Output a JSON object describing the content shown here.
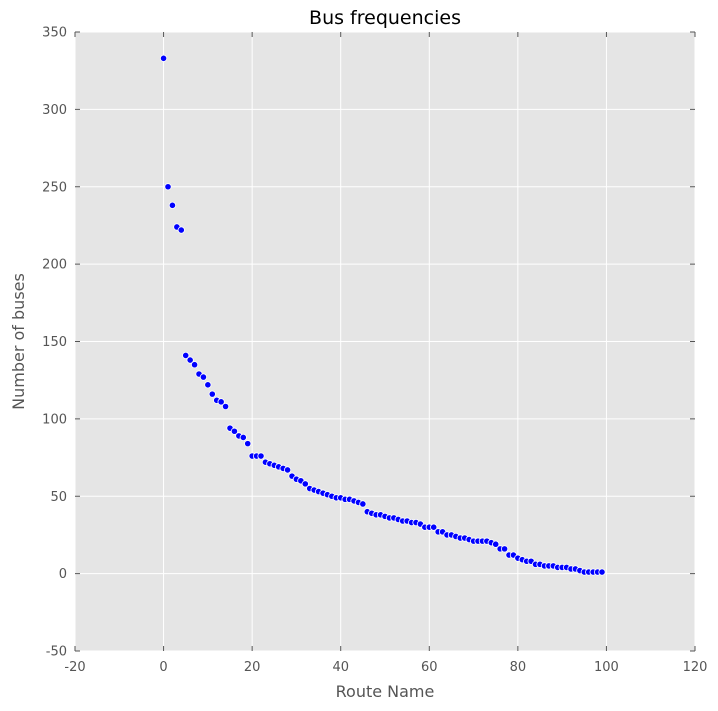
{
  "chart_data": {
    "type": "scatter",
    "title": "Bus frequencies",
    "xlabel": "Route Name",
    "ylabel": "Number of buses",
    "xlim": [
      -20,
      120
    ],
    "ylim": [
      -50,
      350
    ],
    "x_ticks": [
      -20,
      0,
      20,
      40,
      60,
      80,
      100,
      120
    ],
    "y_ticks": [
      -50,
      0,
      50,
      100,
      150,
      200,
      250,
      300,
      350
    ],
    "grid": true,
    "legend": "none",
    "colors": {
      "background": "#e5e5e5",
      "grid": "#ffffff",
      "marker": "#0000ff",
      "marker_edge": "#ffffff"
    },
    "series": [
      {
        "x": [
          0,
          1,
          2,
          3,
          4,
          5,
          6,
          7,
          8,
          9,
          10,
          11,
          12,
          13,
          14,
          15,
          16,
          17,
          18,
          19,
          20,
          21,
          22,
          23,
          24,
          25,
          26,
          27,
          28,
          29,
          30,
          31,
          32,
          33,
          34,
          35,
          36,
          37,
          38,
          39,
          40,
          41,
          42,
          43,
          44,
          45,
          46,
          47,
          48,
          49,
          50,
          51,
          52,
          53,
          54,
          55,
          56,
          57,
          58,
          59,
          60,
          61,
          62,
          63,
          64,
          65,
          66,
          67,
          68,
          69,
          70,
          71,
          72,
          73,
          74,
          75,
          76,
          77,
          78,
          79,
          80,
          81,
          82,
          83,
          84,
          85,
          86,
          87,
          88,
          89,
          90,
          91,
          92,
          93,
          94,
          95,
          96,
          97,
          98,
          99
        ],
        "y": [
          333,
          250,
          238,
          224,
          222,
          141,
          138,
          135,
          129,
          127,
          122,
          116,
          112,
          111,
          108,
          94,
          92,
          89,
          88,
          84,
          76,
          76,
          76,
          72,
          71,
          70,
          69,
          68,
          67,
          63,
          61,
          60,
          58,
          55,
          54,
          53,
          52,
          51,
          50,
          49,
          49,
          48,
          48,
          47,
          46,
          45,
          40,
          39,
          38,
          38,
          37,
          36,
          36,
          35,
          34,
          34,
          33,
          33,
          32,
          30,
          30,
          30,
          27,
          27,
          25,
          25,
          24,
          23,
          23,
          22,
          21,
          21,
          21,
          21,
          20,
          19,
          16,
          16,
          12,
          12,
          10,
          9,
          8,
          8,
          6,
          6,
          5,
          5,
          5,
          4,
          4,
          4,
          3,
          3,
          2,
          1,
          1,
          1,
          1,
          1
        ]
      }
    ]
  }
}
